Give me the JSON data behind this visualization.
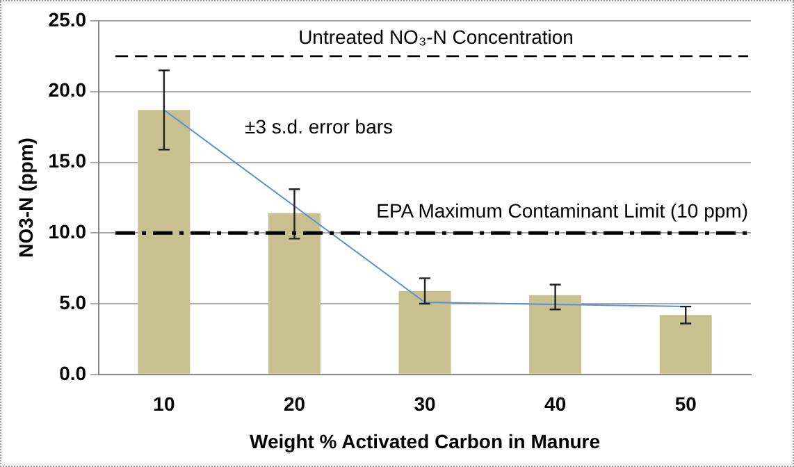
{
  "chart_data": {
    "type": "bar",
    "xlabel": "Weight % Activated Carbon in Manure",
    "ylabel": "NO3-N (ppm)",
    "categories": [
      "10",
      "20",
      "30",
      "40",
      "50"
    ],
    "series": [
      {
        "color": "#c9c08f",
        "values": [
          18.7,
          11.4,
          5.9,
          5.6,
          4.2
        ],
        "errors": [
          [
            15.9,
            21.5
          ],
          [
            9.6,
            13.1
          ],
          [
            5.0,
            6.8
          ],
          [
            4.6,
            6.35
          ],
          [
            3.6,
            4.8
          ]
        ]
      },
      {
        "type": "line",
        "color": "#5b8fd6",
        "x": [
          "10",
          "30",
          "50"
        ],
        "values": [
          18.7,
          5.1,
          4.8
        ]
      }
    ],
    "ylim": [
      0,
      25
    ],
    "yticks": [
      {
        "value": 0,
        "label": "0.0"
      },
      {
        "value": 5,
        "label": "5.0"
      },
      {
        "value": 10,
        "label": "10.0"
      },
      {
        "value": 15,
        "label": "15.0"
      },
      {
        "value": 20,
        "label": "20.0"
      },
      {
        "value": 25,
        "label": "25.0"
      }
    ],
    "grid": "y",
    "ref_lines": [
      {
        "axis": "y",
        "value": 22.5,
        "label": "Untreated NO₃-N Concentration",
        "color": "#000000",
        "line_style": "dashed"
      },
      {
        "axis": "y",
        "value": 10,
        "label": "EPA Maximum Contaminant Limit (10 ppm)",
        "color": "#000000",
        "line_style": "dashdot"
      }
    ],
    "annotations": [
      "±3 s.d. error bars"
    ]
  }
}
